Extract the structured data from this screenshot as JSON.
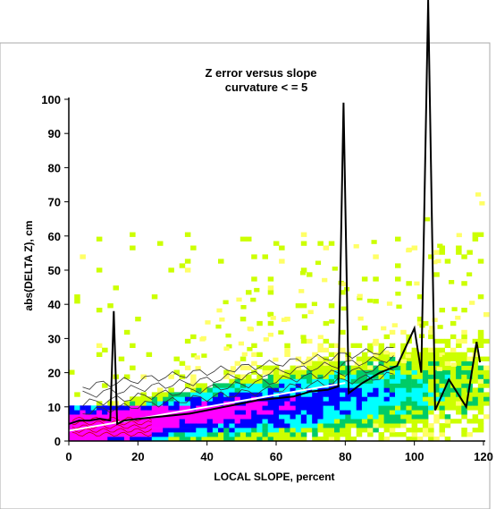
{
  "chart_data": {
    "type": "heatmap",
    "title": "Z error versus slope",
    "subtitle": "curvature < = 5",
    "xlabel": "LOCAL SLOPE, percent",
    "ylabel": "abs(DELTA Z), cm",
    "xlim": [
      0,
      120
    ],
    "ylim": [
      0,
      100
    ],
    "xticks": [
      0,
      20,
      40,
      60,
      80,
      100,
      120
    ],
    "yticks": [
      0,
      10,
      20,
      30,
      40,
      50,
      60,
      70,
      80,
      90,
      100
    ],
    "grid": false,
    "legend": "none",
    "colors": {
      "high_density": "#ff00ff",
      "mid_high": "#0000ff",
      "mid": "#00ffff",
      "mid_low": "#00cc66",
      "low": "#ccff00",
      "very_low": "#ffff66",
      "contour": "#cc0000",
      "mean_line": "#000000",
      "trend_line": "#ffffff"
    },
    "series": [
      {
        "values_x": [
          0,
          3,
          6,
          9,
          12,
          13,
          14,
          16,
          20,
          25,
          30,
          35,
          40,
          45,
          50,
          55,
          60,
          65,
          70,
          75,
          78,
          79.5,
          81,
          85,
          90,
          95,
          100,
          102,
          104,
          106,
          110,
          115,
          118,
          119
        ],
        "values_y": [
          5,
          6,
          6,
          6.5,
          6,
          38,
          5,
          6,
          6.5,
          7,
          7.5,
          8,
          9,
          10,
          11,
          12,
          12.5,
          13,
          14.5,
          15,
          16,
          99,
          14,
          17,
          20,
          22,
          33,
          20,
          175,
          9,
          18,
          10,
          29,
          23
        ]
      },
      {
        "values_x": [
          0,
          20,
          40,
          60,
          80
        ],
        "values_y": [
          3,
          6.5,
          10,
          13.5,
          17
        ]
      }
    ],
    "density_grid": {
      "x_edges_step": 1.6,
      "y_edges_step": 1.3
    }
  }
}
